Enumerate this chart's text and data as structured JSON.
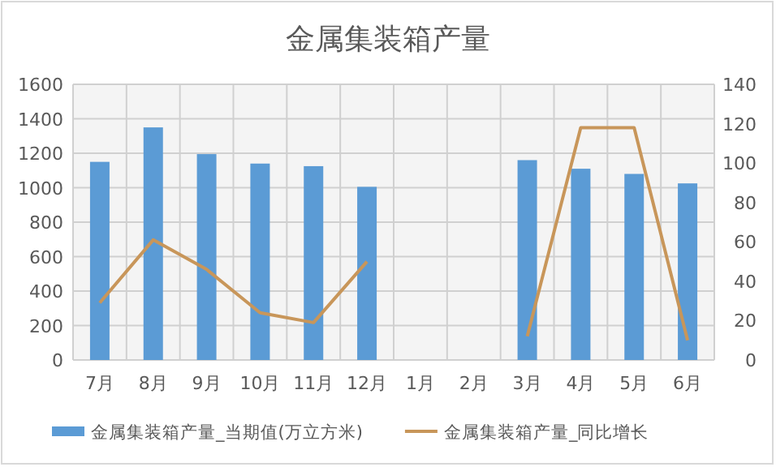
{
  "chart_data": {
    "type": "bar",
    "title": "金属集装箱产量",
    "categories": [
      "7月",
      "8月",
      "9月",
      "10月",
      "11月",
      "12月",
      "1月",
      "2月",
      "3月",
      "4月",
      "5月",
      "6月"
    ],
    "series": [
      {
        "name": "金属集装箱产量_当期值(万立方米)",
        "color": "#5b9bd5",
        "values": [
          1150,
          1350,
          1195,
          1140,
          1125,
          1005,
          null,
          null,
          1160,
          1110,
          1080,
          1025
        ]
      },
      {
        "name": "金属集装箱产量_同比增长",
        "type": "line",
        "axis": "y2",
        "color": "#c8965a",
        "values": [
          29,
          61,
          46,
          24,
          19,
          50,
          null,
          null,
          12,
          118,
          118,
          10
        ]
      }
    ],
    "ylim": [
      0,
      1600
    ],
    "yticks": [
      0,
      200,
      400,
      600,
      800,
      1000,
      1200,
      1400,
      1600
    ],
    "y2lim": [
      0,
      140
    ],
    "y2ticks": [
      0,
      20,
      40,
      60,
      80,
      100,
      120,
      140
    ],
    "grid": true,
    "legend": "bottom",
    "marker": "none",
    "line_style": "solid"
  }
}
